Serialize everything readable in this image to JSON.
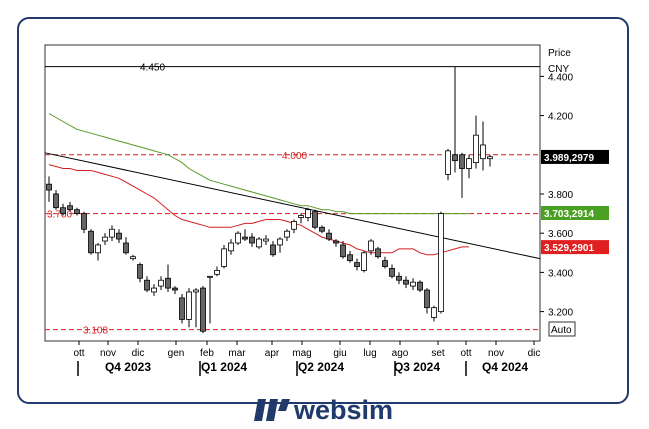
{
  "brand": {
    "name": "websim"
  },
  "chart_data": {
    "type": "candlestick",
    "price_axis": {
      "title": "Price",
      "unit": "CNY",
      "ticks": [
        3.2,
        3.4,
        3.6,
        3.8,
        4.2,
        4.4
      ],
      "tick_labels": [
        "3.200",
        "3.400",
        "3.600",
        "3.800",
        "4.200",
        "4.400"
      ],
      "range": [
        3.05,
        4.56
      ]
    },
    "auto_button": "Auto",
    "months": [
      "ott",
      "nov",
      "dic",
      "gen",
      "feb",
      "mar",
      "apr",
      "mag",
      "giu",
      "lug",
      "ago",
      "set",
      "ott",
      "nov",
      "dic"
    ],
    "quarters": [
      "Q4 2023",
      "Q1 2024",
      "Q2 2024",
      "Q3 2024",
      "Q4 2024"
    ],
    "horizontal_levels": [
      {
        "value": 4.45,
        "label": "4.450",
        "style": "solid",
        "color": "#000000"
      },
      {
        "value": 4.0,
        "label": "4.000",
        "style": "dashed",
        "color": "#d42020"
      },
      {
        "value": 3.7,
        "label": "3.700",
        "style": "dashed",
        "color": "#d42020"
      },
      {
        "value": 3.108,
        "label": "3.108",
        "style": "dashed",
        "color": "#d42020"
      }
    ],
    "price_tags": [
      {
        "label": "3.989,2979",
        "value": 3.989,
        "bg": "#000000",
        "fg": "#ffffff"
      },
      {
        "label": "3.703,2914",
        "value": 3.703,
        "bg": "#4aa020",
        "fg": "#ffffff"
      },
      {
        "label": "3.529,2901",
        "value": 3.529,
        "bg": "#e02020",
        "fg": "#ffffff"
      }
    ],
    "trendline": {
      "start": {
        "bar": 0,
        "value": 4.01
      },
      "end": {
        "bar": 65,
        "value": 3.47
      },
      "color": "#000000"
    },
    "ma_slow": {
      "color": "#5a9a2a",
      "values": [
        4.21,
        4.19,
        4.17,
        4.15,
        4.13,
        4.12,
        4.11,
        4.1,
        4.09,
        4.08,
        4.07,
        4.06,
        4.05,
        4.04,
        4.03,
        4.02,
        4.01,
        4.0,
        3.98,
        3.96,
        3.93,
        3.91,
        3.89,
        3.87,
        3.86,
        3.85,
        3.84,
        3.83,
        3.82,
        3.81,
        3.8,
        3.79,
        3.78,
        3.77,
        3.76,
        3.75,
        3.74,
        3.74,
        3.73,
        3.72,
        3.72,
        3.71,
        3.71,
        3.7,
        3.7,
        3.7,
        3.7,
        3.7,
        3.7,
        3.7,
        3.7,
        3.7,
        3.7,
        3.7,
        3.7,
        3.7,
        3.7,
        3.7,
        3.7,
        3.7,
        3.7
      ]
    },
    "ma_fast": {
      "color": "#d42020",
      "values": [
        3.95,
        3.94,
        3.93,
        3.93,
        3.92,
        3.92,
        3.92,
        3.91,
        3.9,
        3.89,
        3.88,
        3.86,
        3.84,
        3.82,
        3.8,
        3.78,
        3.75,
        3.72,
        3.69,
        3.67,
        3.66,
        3.65,
        3.64,
        3.63,
        3.63,
        3.63,
        3.63,
        3.64,
        3.65,
        3.65,
        3.66,
        3.67,
        3.67,
        3.67,
        3.66,
        3.65,
        3.64,
        3.62,
        3.6,
        3.58,
        3.57,
        3.56,
        3.55,
        3.54,
        3.52,
        3.51,
        3.5,
        3.5,
        3.5,
        3.5,
        3.52,
        3.52,
        3.52,
        3.5,
        3.49,
        3.49,
        3.5,
        3.51,
        3.52,
        3.53,
        3.53
      ]
    },
    "candles": [
      [
        3.85,
        3.82,
        3.89,
        3.76
      ],
      [
        3.8,
        3.73,
        3.82,
        3.72
      ],
      [
        3.73,
        3.7,
        3.75,
        3.69
      ],
      [
        3.74,
        3.72,
        3.76,
        3.71
      ],
      [
        3.72,
        3.7,
        3.73,
        3.69
      ],
      [
        3.7,
        3.62,
        3.71,
        3.6
      ],
      [
        3.61,
        3.5,
        3.62,
        3.49
      ],
      [
        3.5,
        3.54,
        3.55,
        3.46
      ],
      [
        3.56,
        3.58,
        3.6,
        3.54
      ],
      [
        3.58,
        3.62,
        3.64,
        3.56
      ],
      [
        3.6,
        3.57,
        3.62,
        3.55
      ],
      [
        3.55,
        3.5,
        3.58,
        3.49
      ],
      [
        3.47,
        3.48,
        3.49,
        3.46
      ],
      [
        3.44,
        3.37,
        3.45,
        3.35
      ],
      [
        3.36,
        3.31,
        3.38,
        3.3
      ],
      [
        3.3,
        3.32,
        3.34,
        3.28
      ],
      [
        3.33,
        3.36,
        3.38,
        3.31
      ],
      [
        3.37,
        3.32,
        3.44,
        3.3
      ],
      [
        3.32,
        3.31,
        3.33,
        3.29
      ],
      [
        3.27,
        3.16,
        3.29,
        3.14
      ],
      [
        3.16,
        3.3,
        3.32,
        3.12
      ],
      [
        3.3,
        3.31,
        3.32,
        3.12
      ],
      [
        3.32,
        3.1,
        3.33,
        3.09
      ],
      [
        3.38,
        3.38,
        3.38,
        3.14
      ],
      [
        3.39,
        3.41,
        3.43,
        3.38
      ],
      [
        3.43,
        3.52,
        3.54,
        3.42
      ],
      [
        3.51,
        3.55,
        3.57,
        3.49
      ],
      [
        3.55,
        3.6,
        3.61,
        3.54
      ],
      [
        3.58,
        3.57,
        3.62,
        3.56
      ],
      [
        3.58,
        3.55,
        3.6,
        3.53
      ],
      [
        3.53,
        3.57,
        3.58,
        3.52
      ],
      [
        3.56,
        3.57,
        3.59,
        3.54
      ],
      [
        3.54,
        3.49,
        3.56,
        3.48
      ],
      [
        3.54,
        3.57,
        3.58,
        3.5
      ],
      [
        3.58,
        3.61,
        3.62,
        3.56
      ],
      [
        3.62,
        3.66,
        3.67,
        3.6
      ],
      [
        3.68,
        3.69,
        3.7,
        3.65
      ],
      [
        3.68,
        3.72,
        3.73,
        3.66
      ],
      [
        3.71,
        3.63,
        3.72,
        3.62
      ],
      [
        3.63,
        3.61,
        3.64,
        3.6
      ],
      [
        3.6,
        3.57,
        3.62,
        3.56
      ],
      [
        3.56,
        3.55,
        3.57,
        3.53
      ],
      [
        3.54,
        3.48,
        3.56,
        3.47
      ],
      [
        3.49,
        3.46,
        3.51,
        3.45
      ],
      [
        3.45,
        3.43,
        3.47,
        3.41
      ],
      [
        3.41,
        3.5,
        3.51,
        3.4
      ],
      [
        3.51,
        3.56,
        3.57,
        3.49
      ],
      [
        3.52,
        3.48,
        3.53,
        3.47
      ],
      [
        3.46,
        3.43,
        3.48,
        3.42
      ],
      [
        3.42,
        3.38,
        3.44,
        3.37
      ],
      [
        3.38,
        3.36,
        3.4,
        3.34
      ],
      [
        3.36,
        3.34,
        3.38,
        3.32
      ],
      [
        3.33,
        3.35,
        3.37,
        3.31
      ],
      [
        3.35,
        3.31,
        3.36,
        3.3
      ],
      [
        3.31,
        3.22,
        3.32,
        3.19
      ],
      [
        3.17,
        3.22,
        3.23,
        3.15
      ],
      [
        3.2,
        3.7,
        3.71,
        3.19
      ],
      [
        3.9,
        4.02,
        4.03,
        3.87
      ],
      [
        4.0,
        3.97,
        4.45,
        3.91
      ],
      [
        4.0,
        3.93,
        4.01,
        3.78
      ],
      [
        3.93,
        3.98,
        4.0,
        3.88
      ],
      [
        3.96,
        4.1,
        4.2,
        3.93
      ],
      [
        3.98,
        4.05,
        4.17,
        3.92
      ],
      [
        3.98,
        3.99,
        4.0,
        3.94
      ]
    ]
  }
}
